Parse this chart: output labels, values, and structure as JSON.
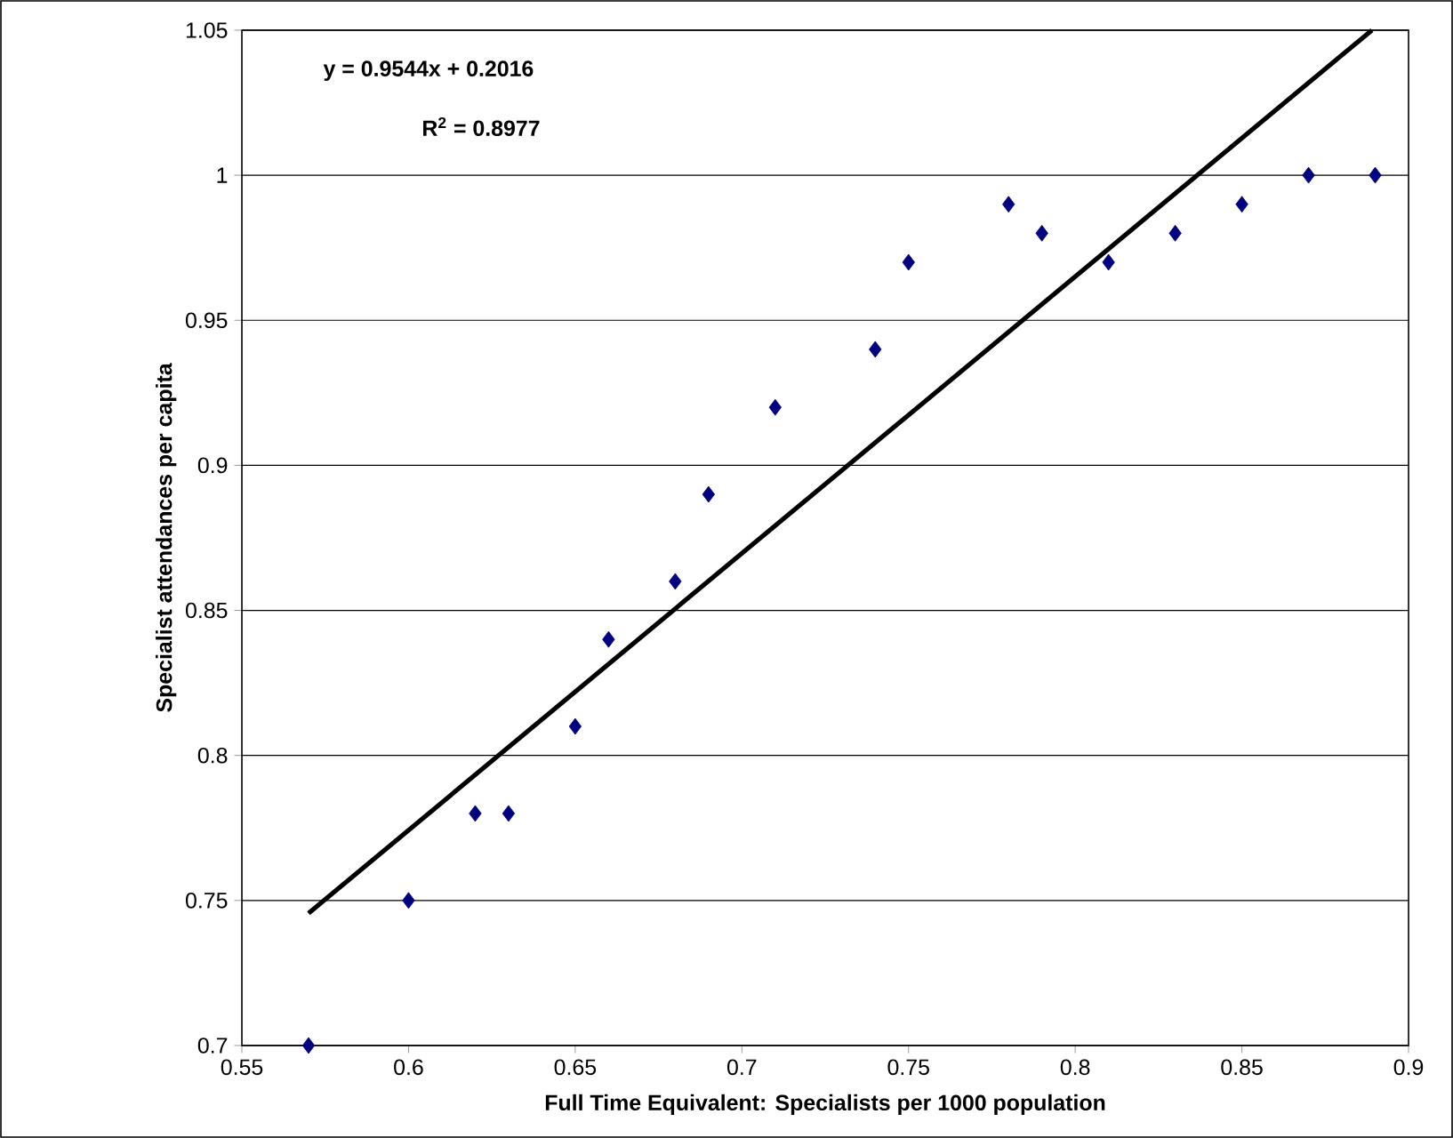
{
  "chart_data": {
    "type": "scatter",
    "xlabel": "Full Time Equivalent: Specialists per 1000 population",
    "ylabel": "Specialist attendances per capita",
    "xlim": [
      0.55,
      0.9
    ],
    "xticks": [
      0.55,
      0.6,
      0.65,
      0.7,
      0.75,
      0.8,
      0.85,
      0.9
    ],
    "ylim": [
      0.7,
      1.05
    ],
    "yticks": [
      0.7,
      0.75,
      0.8,
      0.85,
      0.9,
      0.95,
      1,
      1.05
    ],
    "grid": "y",
    "marker": "diamond",
    "series": [
      {
        "color": "#000080",
        "x": [
          0.57,
          0.6,
          0.62,
          0.63,
          0.65,
          0.66,
          0.68,
          0.69,
          0.71,
          0.74,
          0.75,
          0.78,
          0.79,
          0.81,
          0.83,
          0.85,
          0.87,
          0.89
        ],
        "values": [
          0.7,
          0.75,
          0.78,
          0.78,
          0.81,
          0.84,
          0.86,
          0.89,
          0.92,
          0.94,
          0.97,
          0.99,
          0.98,
          0.97,
          0.98,
          0.99,
          1.0,
          1.0
        ]
      },
      {
        "type": "line",
        "marker": "none",
        "color": "#000000",
        "x": [
          0.57,
          0.889
        ],
        "values": [
          0.7456,
          1.05
        ]
      }
    ],
    "annotations": [
      "y = 0.9544x + 0.2016",
      "R$^{2}$ = 0.8977"
    ]
  }
}
